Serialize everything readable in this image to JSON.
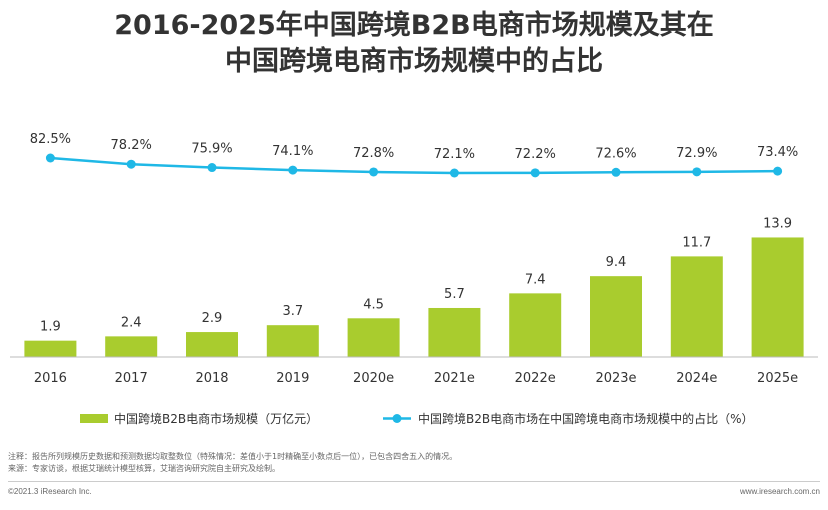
{
  "title_line1": "2016-2025年中国跨境B2B电商市场规模及其在",
  "title_line2": "中国跨境电商市场规模中的占比",
  "chart_data": {
    "type": "bar",
    "categories": [
      "2016",
      "2017",
      "2018",
      "2019",
      "2020e",
      "2021e",
      "2022e",
      "2023e",
      "2024e",
      "2025e"
    ],
    "series": [
      {
        "name": "中国跨境B2B电商市场规模（万亿元）",
        "type": "bar",
        "values": [
          1.9,
          2.4,
          2.9,
          3.7,
          4.5,
          5.7,
          7.4,
          9.4,
          11.7,
          13.9
        ],
        "labels": [
          "1.9",
          "2.4",
          "2.9",
          "3.7",
          "4.5",
          "5.7",
          "7.4",
          "9.4",
          "11.7",
          "13.9"
        ],
        "color": "#a9cc2e"
      },
      {
        "name": "中国跨境B2B电商市场在中国跨境电商市场规模中的占比（%）",
        "type": "line",
        "values": [
          82.5,
          78.2,
          75.9,
          74.1,
          72.8,
          72.1,
          72.2,
          72.6,
          72.9,
          73.4
        ],
        "labels": [
          "82.5%",
          "78.2%",
          "75.9%",
          "74.1%",
          "72.8%",
          "72.1%",
          "72.2%",
          "72.6%",
          "72.9%",
          "73.4%"
        ],
        "color": "#1fb8e6"
      }
    ],
    "legend_position": "bottom",
    "grid": false
  },
  "notes": {
    "line1": "注释：报告所列规模历史数据和预测数据均取整数位（特殊情况：差值小于1时精确至小数点后一位），已包含四舍五入的情况。",
    "line2": "来源：专家访谈，根据艾瑞统计模型核算，艾瑞咨询研究院自主研究及绘制。"
  },
  "footer": {
    "copyright": "©2021.3 iResearch Inc.",
    "website": "www.iresearch.com.cn"
  }
}
